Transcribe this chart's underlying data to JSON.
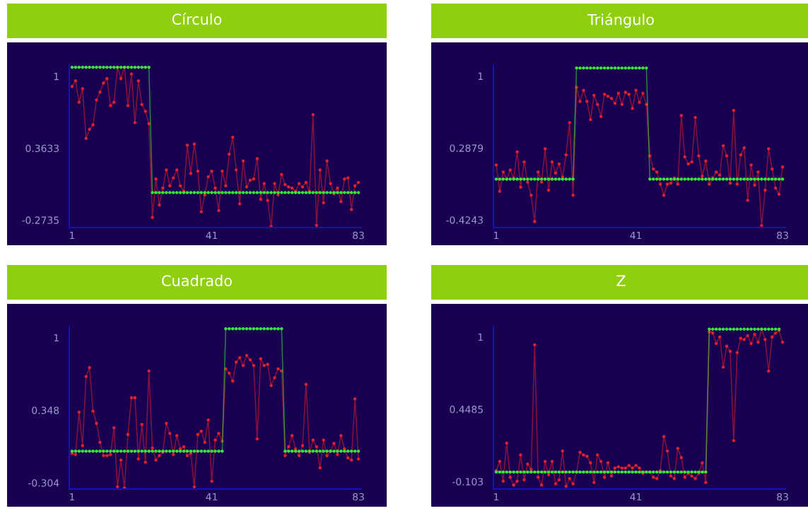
{
  "chart_data": [
    {
      "type": "line",
      "title": "Círculo",
      "xlim": [
        0.2,
        83.8
      ],
      "xticks": [
        1,
        41,
        83
      ],
      "ylim": [
        -0.34,
        1.1
      ],
      "yticks": [
        1,
        0.3633,
        -0.2735
      ],
      "grid": false,
      "marker": "circle",
      "line_style": "solid",
      "x": [
        1,
        2,
        3,
        4,
        5,
        6,
        7,
        8,
        9,
        10,
        11,
        12,
        13,
        14,
        15,
        16,
        17,
        18,
        19,
        20,
        21,
        22,
        23,
        24,
        25,
        26,
        27,
        28,
        29,
        30,
        31,
        32,
        33,
        34,
        35,
        36,
        37,
        38,
        39,
        40,
        41,
        42,
        43,
        44,
        45,
        46,
        47,
        48,
        49,
        50,
        51,
        52,
        53,
        54,
        55,
        56,
        57,
        58,
        59,
        60,
        61,
        62,
        63,
        64,
        65,
        66,
        67,
        68,
        69,
        70,
        71,
        72,
        73,
        74,
        75,
        76,
        77,
        78,
        79,
        80,
        81,
        82,
        83
      ],
      "series": [
        {
          "color": "#3ae83a",
          "values": [
            1.08,
            1.08,
            1.08,
            1.08,
            1.08,
            1.08,
            1.08,
            1.08,
            1.08,
            1.08,
            1.08,
            1.08,
            1.08,
            1.08,
            1.08,
            1.08,
            1.08,
            1.08,
            1.08,
            1.08,
            1.08,
            1.08,
            1.08,
            -0.03,
            -0.03,
            -0.03,
            -0.03,
            -0.03,
            -0.03,
            -0.03,
            -0.03,
            -0.03,
            -0.03,
            -0.03,
            -0.03,
            -0.03,
            -0.03,
            -0.03,
            -0.03,
            -0.03,
            -0.03,
            -0.03,
            -0.03,
            -0.03,
            -0.03,
            -0.03,
            -0.03,
            -0.03,
            -0.03,
            -0.03,
            -0.03,
            -0.03,
            -0.03,
            -0.03,
            -0.03,
            -0.03,
            -0.03,
            -0.03,
            -0.03,
            -0.03,
            -0.03,
            -0.03,
            -0.03,
            -0.03,
            -0.03,
            -0.03,
            -0.03,
            -0.03,
            -0.03,
            -0.03,
            -0.03,
            -0.03,
            -0.03,
            -0.03,
            -0.03,
            -0.03,
            -0.03,
            -0.03,
            -0.03,
            -0.03,
            -0.03,
            -0.03,
            -0.03
          ]
        },
        {
          "color": "#e0202c",
          "values": [
            0.91,
            0.96,
            0.77,
            0.89,
            0.45,
            0.53,
            0.57,
            0.79,
            0.86,
            0.94,
            0.98,
            0.74,
            0.77,
            1.08,
            0.98,
            1.08,
            0.74,
            1.02,
            0.59,
            0.96,
            0.75,
            0.69,
            0.58,
            -0.25,
            0.09,
            -0.14,
            0.01,
            0.17,
            0.03,
            0.1,
            0.17,
            0.03,
            -0.02,
            0.39,
            0.14,
            0.4,
            0.16,
            -0.2,
            -0.05,
            0.11,
            0.16,
            0.01,
            -0.19,
            0.16,
            0.03,
            0.31,
            0.46,
            0.17,
            -0.13,
            0.25,
            0.02,
            0.08,
            0.09,
            0.27,
            -0.09,
            0.05,
            -0.1,
            -0.33,
            0.05,
            -0.05,
            0.13,
            0.04,
            0.02,
            0.01,
            -0.02,
            0.05,
            0.02,
            0.06,
            -0.02,
            0.66,
            -0.32,
            0.17,
            -0.12,
            0.25,
            0.05,
            -0.04,
            0.01,
            -0.11,
            0.09,
            0.1,
            -0.18,
            0.03,
            0.06
          ]
        }
      ]
    },
    {
      "type": "line",
      "title": "Triángulo",
      "xlim": [
        0.2,
        83.8
      ],
      "xticks": [
        1,
        41,
        83
      ],
      "ylim": [
        -0.5,
        1.11
      ],
      "yticks": [
        1,
        0.2879,
        -0.4243
      ],
      "grid": false,
      "marker": "circle",
      "line_style": "solid",
      "x": [
        1,
        2,
        3,
        4,
        5,
        6,
        7,
        8,
        9,
        10,
        11,
        12,
        13,
        14,
        15,
        16,
        17,
        18,
        19,
        20,
        21,
        22,
        23,
        24,
        25,
        26,
        27,
        28,
        29,
        30,
        31,
        32,
        33,
        34,
        35,
        36,
        37,
        38,
        39,
        40,
        41,
        42,
        43,
        44,
        45,
        46,
        47,
        48,
        49,
        50,
        51,
        52,
        53,
        54,
        55,
        56,
        57,
        58,
        59,
        60,
        61,
        62,
        63,
        64,
        65,
        66,
        67,
        68,
        69,
        70,
        71,
        72,
        73,
        74,
        75,
        76,
        77,
        78,
        79,
        80,
        81,
        82,
        83
      ],
      "series": [
        {
          "color": "#3ae83a",
          "values": [
            -0.02,
            -0.02,
            -0.02,
            -0.02,
            -0.02,
            -0.02,
            -0.02,
            -0.02,
            -0.02,
            -0.02,
            -0.02,
            -0.02,
            -0.02,
            -0.02,
            -0.02,
            -0.02,
            -0.02,
            -0.02,
            -0.02,
            -0.02,
            -0.02,
            -0.02,
            -0.02,
            1.08,
            1.08,
            1.08,
            1.08,
            1.08,
            1.08,
            1.08,
            1.08,
            1.08,
            1.08,
            1.08,
            1.08,
            1.08,
            1.08,
            1.08,
            1.08,
            1.08,
            1.08,
            1.08,
            1.08,
            1.08,
            -0.02,
            -0.02,
            -0.02,
            -0.02,
            -0.02,
            -0.02,
            -0.02,
            -0.02,
            -0.02,
            -0.02,
            -0.02,
            -0.02,
            -0.02,
            -0.02,
            -0.02,
            -0.02,
            -0.02,
            -0.02,
            -0.02,
            -0.02,
            -0.02,
            -0.02,
            -0.02,
            -0.02,
            -0.02,
            -0.02,
            -0.02,
            -0.02,
            -0.02,
            -0.02,
            -0.02,
            -0.02,
            -0.02,
            -0.02,
            -0.02,
            -0.02,
            -0.02,
            -0.02,
            -0.02
          ]
        },
        {
          "color": "#e0202c",
          "values": [
            0.12,
            -0.14,
            0.05,
            -0.02,
            0.07,
            -0.01,
            0.25,
            -0.1,
            0.15,
            -0.05,
            -0.18,
            -0.44,
            0.05,
            -0.05,
            0.28,
            -0.13,
            0.15,
            0.04,
            0.13,
            0.0,
            0.22,
            0.54,
            -0.18,
            0.89,
            0.75,
            0.86,
            0.75,
            0.57,
            0.81,
            0.72,
            0.6,
            0.82,
            0.8,
            0.78,
            0.73,
            0.83,
            0.72,
            0.84,
            0.82,
            0.68,
            0.86,
            0.74,
            0.83,
            0.72,
            0.21,
            0.08,
            0.05,
            -0.07,
            -0.18,
            -0.07,
            -0.06,
            -0.01,
            -0.07,
            0.61,
            0.2,
            0.13,
            0.15,
            0.59,
            0.21,
            0.01,
            0.16,
            -0.07,
            -0.01,
            0.05,
            0.02,
            0.31,
            0.21,
            -0.06,
            0.66,
            -0.07,
            0.22,
            0.29,
            -0.23,
            0.12,
            -0.08,
            0.05,
            -0.48,
            -0.13,
            0.28,
            0.08,
            -0.11,
            -0.17,
            0.1
          ]
        }
      ]
    },
    {
      "type": "line",
      "title": "Cuadrado",
      "xlim": [
        0.2,
        83.8
      ],
      "xticks": [
        1,
        41,
        83
      ],
      "ylim": [
        -0.36,
        1.1
      ],
      "yticks": [
        1,
        0.348,
        -0.304
      ],
      "grid": false,
      "marker": "circle",
      "line_style": "solid",
      "x": [
        1,
        2,
        3,
        4,
        5,
        6,
        7,
        8,
        9,
        10,
        11,
        12,
        13,
        14,
        15,
        16,
        17,
        18,
        19,
        20,
        21,
        22,
        23,
        24,
        25,
        26,
        27,
        28,
        29,
        30,
        31,
        32,
        33,
        34,
        35,
        36,
        37,
        38,
        39,
        40,
        41,
        42,
        43,
        44,
        45,
        46,
        47,
        48,
        49,
        50,
        51,
        52,
        53,
        54,
        55,
        56,
        57,
        58,
        59,
        60,
        61,
        62,
        63,
        64,
        65,
        66,
        67,
        68,
        69,
        70,
        71,
        72,
        73,
        74,
        75,
        76,
        77,
        78,
        79,
        80,
        81,
        82,
        83
      ],
      "series": [
        {
          "color": "#3ae83a",
          "values": [
            -0.02,
            -0.02,
            -0.02,
            -0.02,
            -0.02,
            -0.02,
            -0.02,
            -0.02,
            -0.02,
            -0.02,
            -0.02,
            -0.02,
            -0.02,
            -0.02,
            -0.02,
            -0.02,
            -0.02,
            -0.02,
            -0.02,
            -0.02,
            -0.02,
            -0.02,
            -0.02,
            -0.02,
            -0.02,
            -0.02,
            -0.02,
            -0.02,
            -0.02,
            -0.02,
            -0.02,
            -0.02,
            -0.02,
            -0.02,
            -0.02,
            -0.02,
            -0.02,
            -0.02,
            -0.02,
            -0.02,
            -0.02,
            -0.02,
            -0.02,
            -0.02,
            1.08,
            1.08,
            1.08,
            1.08,
            1.08,
            1.08,
            1.08,
            1.08,
            1.08,
            1.08,
            1.08,
            1.08,
            1.08,
            1.08,
            1.08,
            1.08,
            1.08,
            -0.02,
            -0.02,
            -0.02,
            -0.02,
            -0.02,
            -0.02,
            -0.02,
            -0.02,
            -0.02,
            -0.02,
            -0.02,
            -0.02,
            -0.02,
            -0.02,
            -0.02,
            -0.02,
            -0.02,
            -0.02,
            -0.02,
            -0.02,
            -0.02,
            -0.02
          ]
        },
        {
          "color": "#e0202c",
          "values": [
            -0.04,
            -0.05,
            0.33,
            0.03,
            0.65,
            0.73,
            0.34,
            0.23,
            0.06,
            -0.06,
            -0.06,
            -0.05,
            0.19,
            -0.34,
            -0.1,
            -0.35,
            0.13,
            0.46,
            0.46,
            -0.09,
            0.22,
            -0.12,
            0.7,
            0.01,
            -0.1,
            -0.06,
            -0.03,
            0.23,
            0.14,
            -0.05,
            0.12,
            0.0,
            0.02,
            -0.06,
            -0.04,
            -0.34,
            0.13,
            0.16,
            0.06,
            0.26,
            -0.29,
            0.08,
            0.14,
            0.07,
            0.72,
            0.68,
            0.61,
            0.78,
            0.82,
            0.75,
            0.84,
            0.8,
            0.75,
            0.09,
            0.81,
            0.75,
            0.76,
            0.57,
            0.64,
            0.72,
            0.7,
            -0.06,
            0.02,
            0.12,
            0.0,
            -0.06,
            0.03,
            0.58,
            -0.03,
            0.08,
            0.02,
            -0.17,
            0.08,
            -0.06,
            -0.02,
            0.05,
            -0.05,
            0.12,
            0.0,
            -0.08,
            -0.1,
            0.45,
            -0.09
          ]
        }
      ]
    },
    {
      "type": "line",
      "title": "Z",
      "xlim": [
        0.2,
        83.8
      ],
      "xticks": [
        1,
        41,
        83
      ],
      "ylim": [
        -0.16,
        1.08
      ],
      "yticks": [
        1,
        0.4485,
        -0.103
      ],
      "grid": false,
      "marker": "circle",
      "line_style": "solid",
      "x": [
        1,
        2,
        3,
        4,
        5,
        6,
        7,
        8,
        9,
        10,
        11,
        12,
        13,
        14,
        15,
        16,
        17,
        18,
        19,
        20,
        21,
        22,
        23,
        24,
        25,
        26,
        27,
        28,
        29,
        30,
        31,
        32,
        33,
        34,
        35,
        36,
        37,
        38,
        39,
        40,
        41,
        42,
        43,
        44,
        45,
        46,
        47,
        48,
        49,
        50,
        51,
        52,
        53,
        54,
        55,
        56,
        57,
        58,
        59,
        60,
        61,
        62,
        63,
        64,
        65,
        66,
        67,
        68,
        69,
        70,
        71,
        72,
        73,
        74,
        75,
        76,
        77,
        78,
        79,
        80,
        81,
        82,
        83
      ],
      "series": [
        {
          "color": "#3ae83a",
          "values": [
            -0.03,
            -0.03,
            -0.03,
            -0.03,
            -0.03,
            -0.03,
            -0.03,
            -0.03,
            -0.03,
            -0.03,
            -0.03,
            -0.03,
            -0.03,
            -0.03,
            -0.03,
            -0.03,
            -0.03,
            -0.03,
            -0.03,
            -0.03,
            -0.03,
            -0.03,
            -0.03,
            -0.03,
            -0.03,
            -0.03,
            -0.03,
            -0.03,
            -0.03,
            -0.03,
            -0.03,
            -0.03,
            -0.03,
            -0.03,
            -0.03,
            -0.03,
            -0.03,
            -0.03,
            -0.03,
            -0.03,
            -0.03,
            -0.03,
            -0.03,
            -0.03,
            -0.03,
            -0.03,
            -0.03,
            -0.03,
            -0.03,
            -0.03,
            -0.03,
            -0.03,
            -0.03,
            -0.03,
            -0.03,
            -0.03,
            -0.03,
            -0.03,
            -0.03,
            -0.03,
            -0.03,
            1.06,
            1.06,
            1.06,
            1.06,
            1.06,
            1.06,
            1.06,
            1.06,
            1.06,
            1.06,
            1.06,
            1.06,
            1.06,
            1.06,
            1.06,
            1.06,
            1.06,
            1.06,
            1.06,
            1.06,
            1.06,
            null
          ]
        },
        {
          "color": "#e0202c",
          "values": [
            -0.02,
            0.05,
            -0.1,
            0.19,
            -0.07,
            -0.13,
            -0.1,
            0.1,
            -0.09,
            0.03,
            -0.01,
            0.94,
            -0.07,
            -0.13,
            0.05,
            -0.05,
            0.05,
            -0.12,
            -0.09,
            0.13,
            -0.14,
            -0.08,
            -0.12,
            -0.03,
            0.12,
            0.1,
            0.09,
            0.04,
            -0.11,
            0.1,
            0.05,
            -0.07,
            0.04,
            -0.06,
            0.0,
            0.01,
            0.0,
            0.0,
            0.02,
            0.0,
            0.02,
            0.0,
            -0.04,
            -0.03,
            -0.03,
            -0.07,
            -0.08,
            -0.02,
            0.24,
            0.13,
            -0.06,
            -0.08,
            0.15,
            0.08,
            -0.07,
            -0.04,
            -0.06,
            -0.08,
            -0.04,
            0.04,
            -0.11,
            1.04,
            1.03,
            0.95,
            1.0,
            0.77,
            0.93,
            0.89,
            0.21,
            0.88,
            0.99,
            0.98,
            1.01,
            0.95,
            1.02,
            0.96,
            1.06,
            0.98,
            0.74,
            1.0,
            1.03,
            1.05,
            0.96
          ]
        }
      ]
    }
  ]
}
